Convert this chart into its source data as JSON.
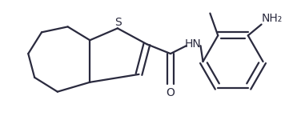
{
  "bg_color": "#ffffff",
  "line_color": "#2a2a3e",
  "line_width": 1.6,
  "font_size": 10,
  "figsize": [
    3.56,
    1.55
  ],
  "dpi": 100,
  "xlim": [
    0,
    356
  ],
  "ylim": [
    0,
    155
  ]
}
